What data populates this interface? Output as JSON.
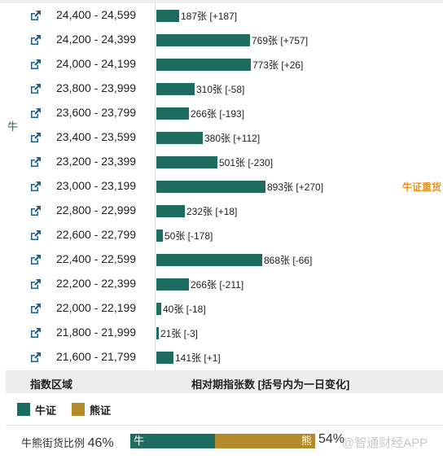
{
  "side_label": "牛",
  "rows": [
    {
      "range": "24,400 - 24,599",
      "count": 187,
      "label": "187张 [+187]",
      "note": ""
    },
    {
      "range": "24,200 - 24,399",
      "count": 769,
      "label": "769张 [+757]",
      "note": ""
    },
    {
      "range": "24,000 - 24,199",
      "count": 773,
      "label": "773张 [+26]",
      "note": ""
    },
    {
      "range": "23,800 - 23,999",
      "count": 310,
      "label": "310张 [-58]",
      "note": ""
    },
    {
      "range": "23,600 - 23,799",
      "count": 266,
      "label": "266张 [-193]",
      "note": ""
    },
    {
      "range": "23,400 - 23,599",
      "count": 380,
      "label": "380张 [+112]",
      "note": ""
    },
    {
      "range": "23,200 - 23,399",
      "count": 501,
      "label": "501张 [-230]",
      "note": ""
    },
    {
      "range": "23,000 - 23,199",
      "count": 893,
      "label": "893张 [+270]",
      "note": "牛证重货"
    },
    {
      "range": "22,800 - 22,999",
      "count": 232,
      "label": "232张 [+18]",
      "note": ""
    },
    {
      "range": "22,600 - 22,799",
      "count": 50,
      "label": "50张 [-178]",
      "note": ""
    },
    {
      "range": "22,400 - 22,599",
      "count": 868,
      "label": "868张 [-66]",
      "note": ""
    },
    {
      "range": "22,200 - 22,399",
      "count": 266,
      "label": "266张 [-211]",
      "note": ""
    },
    {
      "range": "22,000 - 22,199",
      "count": 40,
      "label": "40张 [-18]",
      "note": ""
    },
    {
      "range": "21,800 - 21,999",
      "count": 21,
      "label": "21张 [-3]",
      "note": ""
    },
    {
      "range": "21,600 - 21,799",
      "count": 141,
      "label": "141张 [+1]",
      "note": ""
    }
  ],
  "header": {
    "col1": "指数区域",
    "col2": "相对期指张数 [括号内为一日变化]"
  },
  "legend": {
    "bull": "牛证",
    "bear": "熊证"
  },
  "ratio": {
    "label": "牛熊街货比例",
    "bull_pct": 46,
    "bull_text": "46%",
    "bear_text": "54%",
    "bull_tag": "牛",
    "bear_tag": "熊"
  },
  "watermark": "@智通财经APP",
  "colors": {
    "bull": "#1e6b60",
    "bear": "#b48b2a",
    "note": "#e8921f"
  }
}
